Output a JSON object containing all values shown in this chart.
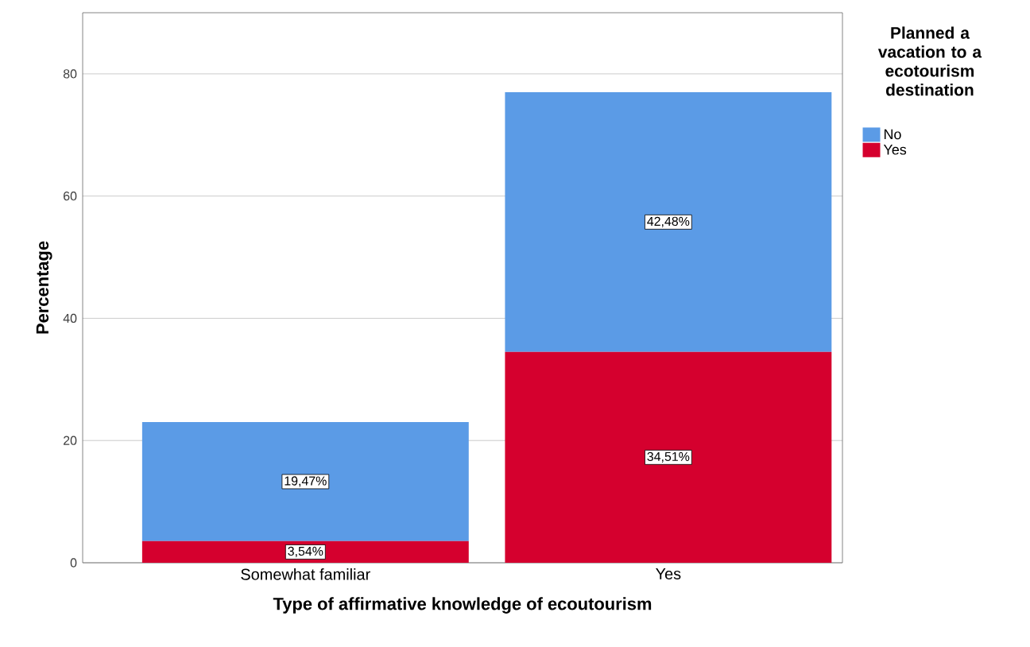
{
  "chart_data": {
    "type": "bar",
    "stacked": true,
    "xlabel": "Type of affirmative knowledge of ecoutourism",
    "ylabel": "Percentage",
    "legend_title": "Planned a vacation to a ecotourism destination",
    "categories": [
      "Somewhat familiar",
      "Yes"
    ],
    "series": [
      {
        "name": "Yes",
        "color": "#d5002e",
        "values": [
          3.54,
          34.51
        ],
        "value_labels": [
          "3,54%",
          "34,51%"
        ]
      },
      {
        "name": "No",
        "color": "#5b9be6",
        "values": [
          19.47,
          42.48
        ],
        "value_labels": [
          "19,47%",
          "42,48%"
        ]
      }
    ],
    "ylim": [
      0,
      90
    ],
    "yticks": [
      0,
      20,
      40,
      60,
      80
    ],
    "grid": "y",
    "legend": "right"
  }
}
